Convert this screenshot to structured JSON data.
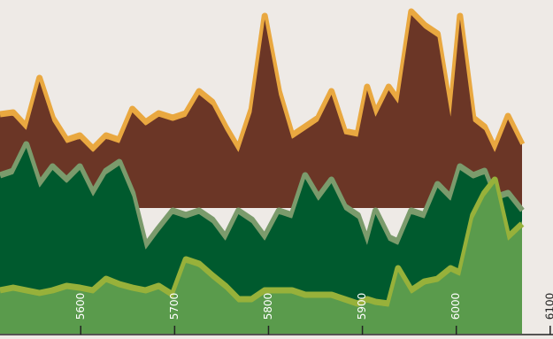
{
  "chart_data": {
    "type": "area",
    "x": [
      5514,
      5528,
      5542,
      5556,
      5570,
      5585,
      5599,
      5613,
      5627,
      5641,
      5655,
      5669,
      5683,
      5698,
      5712,
      5726,
      5740,
      5754,
      5768,
      5782,
      5796,
      5811,
      5825,
      5839,
      5853,
      5867,
      5881,
      5895,
      5905,
      5914,
      5928,
      5938,
      5952,
      5966,
      5980,
      5994,
      6004,
      6018,
      6030,
      6041,
      6055,
      6070
    ],
    "xlim": [
      5514,
      6103
    ],
    "xticks": [
      5600,
      5700,
      5800,
      5900,
      6000,
      6100
    ],
    "ylim": [
      0,
      370
    ],
    "series": [
      {
        "color": "#6b3626",
        "edge_color": "#e9a840",
        "baseline": 142,
        "values": [
          244,
          246,
          230,
          285,
          240,
          215,
          220,
          205,
          220,
          215,
          250,
          235,
          245,
          240,
          245,
          270,
          258,
          230,
          205,
          250,
          355,
          270,
          220,
          230,
          240,
          270,
          225,
          222,
          275,
          245,
          275,
          260,
          360,
          345,
          335,
          245,
          355,
          240,
          230,
          205,
          242,
          210
        ]
      },
      {
        "color": "#005a2e",
        "edge_color": "#7b9b6c",
        "values": [
          175,
          180,
          210,
          165,
          185,
          170,
          185,
          155,
          180,
          190,
          155,
          95,
          115,
          135,
          130,
          135,
          125,
          105,
          135,
          125,
          105,
          135,
          130,
          175,
          150,
          170,
          140,
          130,
          100,
          135,
          105,
          100,
          135,
          130,
          165,
          150,
          185,
          175,
          180,
          150,
          155,
          135
        ]
      },
      {
        "color": "#5a9b4c",
        "edge_color": "#97b13a",
        "values": [
          45,
          48,
          45,
          42,
          45,
          50,
          48,
          45,
          58,
          52,
          48,
          45,
          50,
          40,
          80,
          75,
          62,
          50,
          35,
          35,
          45,
          45,
          45,
          40,
          40,
          40,
          35,
          30,
          35,
          32,
          30,
          70,
          45,
          55,
          58,
          70,
          65,
          130,
          155,
          170,
          105,
          120
        ]
      }
    ]
  }
}
